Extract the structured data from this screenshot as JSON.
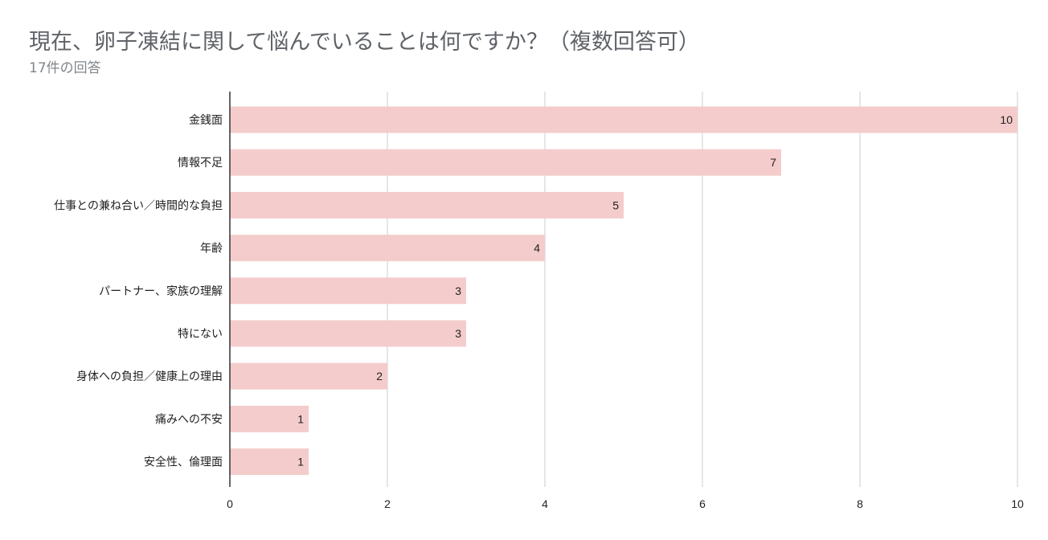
{
  "chart_data": {
    "type": "bar",
    "orientation": "horizontal",
    "title": "現在、卵子凍結に関して悩んでいることは何ですか？（複数回答可）",
    "subtitle": "17件の回答",
    "categories": [
      "金銭面",
      "情報不足",
      "仕事との兼ね合い／時間的な負担",
      "年齢",
      "パートナー、家族の理解",
      "特にない",
      "身体への負担／健康上の理由",
      "痛みへの不安",
      "安全性、倫理面"
    ],
    "values": [
      10,
      7,
      5,
      4,
      3,
      3,
      2,
      1,
      1
    ],
    "xlim": [
      0,
      10
    ],
    "xticks": [
      0,
      2,
      4,
      6,
      8,
      10
    ],
    "grid": true,
    "bar_color": "#f4cccc",
    "data_labels": true
  }
}
